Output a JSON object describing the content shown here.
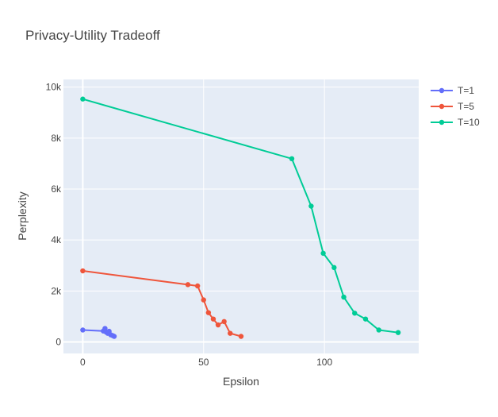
{
  "chart_data": {
    "type": "line",
    "title": "Privacy-Utility Tradeoff",
    "xlabel": "Epsilon",
    "ylabel": "Perplexity",
    "xlim": [
      -8,
      139
    ],
    "ylim": [
      -450,
      10300
    ],
    "xticks": [
      0,
      50,
      100
    ],
    "xtick_labels": [
      "0",
      "50",
      "100"
    ],
    "yticks": [
      0,
      2000,
      4000,
      6000,
      8000,
      10000
    ],
    "ytick_labels": [
      "0",
      "2k",
      "4k",
      "6k",
      "8k",
      "10k"
    ],
    "grid": true,
    "legend_position": "top-right",
    "background_color": "#e5ecf6",
    "series": [
      {
        "name": "T=1",
        "color": "#636efa",
        "x": [
          0,
          8.5,
          9.2,
          9.6,
          10.3,
          10.9,
          11.6,
          12.4,
          13.0
        ],
        "y": [
          470,
          430,
          530,
          390,
          340,
          420,
          280,
          250,
          220
        ]
      },
      {
        "name": "T=5",
        "color": "#ef553b",
        "x": [
          0,
          43.5,
          47.5,
          50.0,
          52.0,
          54.0,
          56.0,
          58.5,
          61.0,
          65.5
        ],
        "y": [
          2790,
          2250,
          2200,
          1650,
          1150,
          900,
          670,
          800,
          340,
          220
        ]
      },
      {
        "name": "T=10",
        "color": "#00cc96",
        "x": [
          0,
          86.5,
          94.5,
          99.5,
          104.0,
          108.0,
          112.5,
          117.0,
          122.5,
          130.5
        ],
        "y": [
          9530,
          7190,
          5330,
          3480,
          2920,
          1760,
          1130,
          900,
          470,
          370
        ]
      }
    ]
  }
}
